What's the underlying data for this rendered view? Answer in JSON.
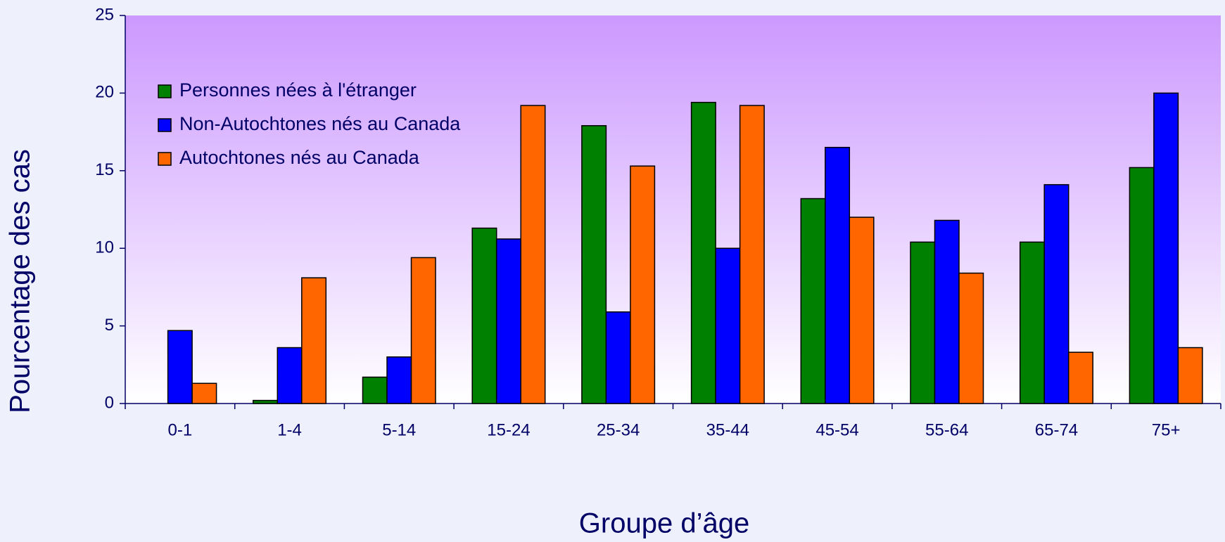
{
  "chart_data": {
    "type": "bar",
    "categories": [
      "0-1",
      "1-4",
      "5-14",
      "15-24",
      "25-34",
      "35-44",
      "45-54",
      "55-64",
      "65-74",
      "75+"
    ],
    "series": [
      {
        "name": "Personnes nées à l'étranger",
        "color": "#008000",
        "values": [
          0,
          0.2,
          1.7,
          11.3,
          17.9,
          19.4,
          13.2,
          10.4,
          10.4,
          15.2
        ]
      },
      {
        "name": "Non-Autochtones nés au Canada",
        "color": "#0000ff",
        "values": [
          4.7,
          3.6,
          3.0,
          10.6,
          5.9,
          10.0,
          16.5,
          11.8,
          14.1,
          20.0
        ]
      },
      {
        "name": "Autochtones nés au Canada",
        "color": "#ff6600",
        "values": [
          1.3,
          8.1,
          9.4,
          19.2,
          15.3,
          19.2,
          12.0,
          8.4,
          3.3,
          3.6
        ]
      }
    ],
    "xlabel": "Groupe d’âge",
    "ylabel": "Pourcentage des cas",
    "ylim": [
      0,
      25
    ],
    "yticks": [
      0,
      5,
      10,
      15,
      20,
      25
    ],
    "legend": "upper left"
  }
}
